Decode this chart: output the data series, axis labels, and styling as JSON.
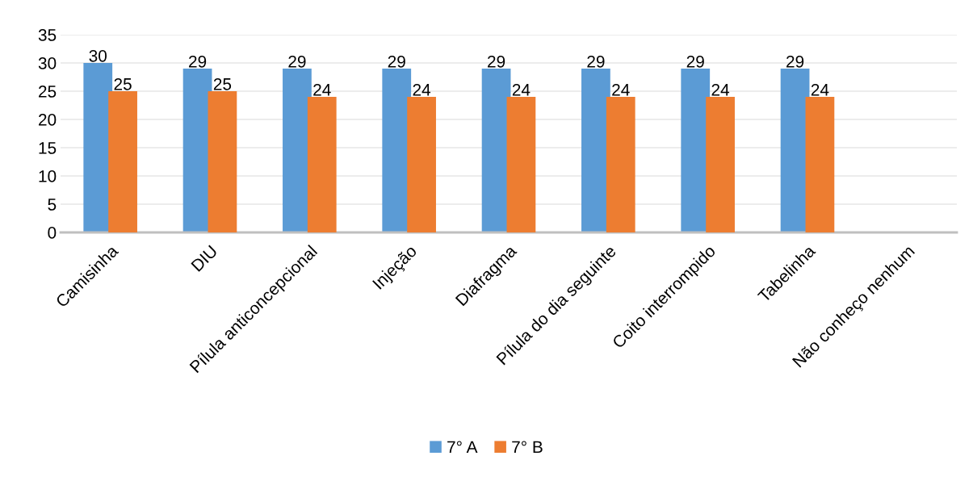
{
  "chart_data": {
    "type": "bar",
    "categories": [
      "Camisinha",
      "DIU",
      "Pílula anticoncepcional",
      "Injeção",
      "Diafragma",
      "Pílula do dia seguinte",
      "Coito interrompido",
      "Tabelinha",
      "Não conheço nenhum"
    ],
    "series": [
      {
        "name": "7° A",
        "color": "#5b9bd5",
        "values": [
          30,
          29,
          29,
          29,
          29,
          29,
          29,
          29,
          null
        ],
        "value_labels": [
          "30",
          "29",
          "29",
          "29",
          "29",
          "29",
          "29",
          "29",
          null
        ]
      },
      {
        "name": "7° B",
        "color": "#ed7d31",
        "values": [
          25,
          25,
          24,
          24,
          24,
          24,
          24,
          24,
          null
        ],
        "value_labels": [
          "25",
          "25",
          "24",
          "24",
          "24",
          "24",
          "24",
          "24",
          null
        ]
      }
    ],
    "ylim": [
      0,
      35
    ],
    "yticks": [
      0,
      5,
      10,
      15,
      20,
      25,
      30,
      35
    ],
    "grid": "y",
    "legend": "bottom"
  }
}
